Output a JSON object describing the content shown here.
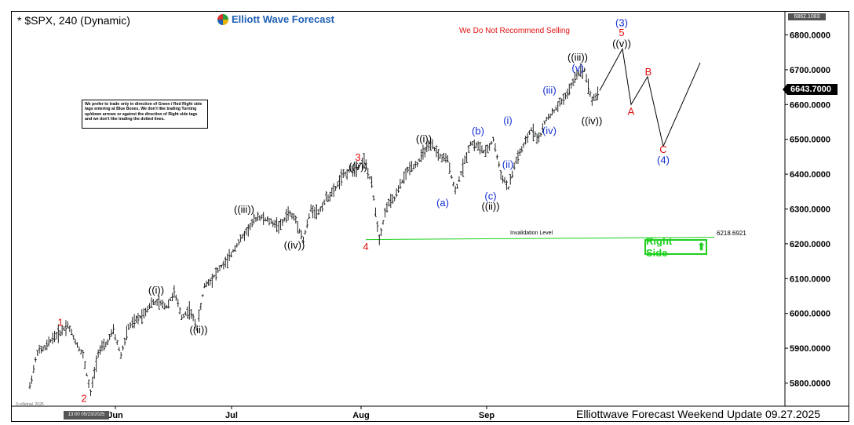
{
  "header": {
    "symbol_title": "* $SPX, 240 (Dynamic)",
    "brand": "Elliott Wave Forecast",
    "warning": "We Do Not Recommend Selling",
    "note": "We prefer to trade only in direction of Green / Red Right side tags entering at Blue Boxes. We don't like trading Turning up/down arrows or against the direction of Right side tags and we don't like trading the dotted lines."
  },
  "footer": {
    "update_text": "Elliottwave Forecast Weekend  Update 09.27.2025",
    "cursor_date": "13:00 05/23/2025",
    "esignal": "© eSignal, 2025"
  },
  "price_axis": {
    "top_label": "6862.1083",
    "current_price": "6643.7000"
  },
  "invalidation": {
    "label": "Invalidation Level",
    "value": "6218.6921"
  },
  "right_side_tag": "Right Side",
  "colors": {
    "red_label": "#e01010",
    "blue_label": "#1530d0",
    "black_label": "#000000",
    "invalidation_line": "#19d019",
    "right_side": "#1fd01f"
  },
  "chart_data": {
    "type": "line",
    "ylim": [
      5745,
      6875
    ],
    "yticks": [
      "5800.0000",
      "5900.0000",
      "6000.0000",
      "6100.0000",
      "6200.0000",
      "6300.0000",
      "6400.0000",
      "6500.0000",
      "6600.0000",
      "6700.0000",
      "6800.0000"
    ],
    "ytick_values": [
      5800,
      5900,
      6000,
      6100,
      6200,
      6300,
      6400,
      6500,
      6600,
      6700,
      6800
    ],
    "xticks": [
      "Jun",
      "Jul",
      "Aug",
      "Sep"
    ],
    "price_path": [
      5790,
      5890,
      5900,
      5930,
      5945,
      5968,
      5920,
      5880,
      5770,
      5890,
      5910,
      5950,
      5880,
      5960,
      5980,
      6000,
      6030,
      6030,
      6020,
      6060,
      5990,
      6010,
      5960,
      6080,
      6100,
      6130,
      6150,
      6190,
      6220,
      6250,
      6280,
      6270,
      6260,
      6250,
      6290,
      6270,
      6210,
      6300,
      6290,
      6330,
      6350,
      6390,
      6410,
      6420,
      6440,
      6370,
      6215,
      6310,
      6330,
      6380,
      6420,
      6430,
      6470,
      6480,
      6450,
      6440,
      6350,
      6420,
      6490,
      6480,
      6460,
      6500,
      6400,
      6360,
      6440,
      6480,
      6530,
      6500,
      6560,
      6580,
      6610,
      6640,
      6690,
      6700,
      6610,
      6640
    ],
    "projection_path": [
      6640,
      6760,
      6600,
      6680,
      6480,
      6720
    ],
    "wave_labels": [
      {
        "text": "1",
        "color": "red",
        "price": 5976,
        "col": 0
      },
      {
        "text": "2",
        "color": "red",
        "price": 5757,
        "col": 1
      },
      {
        "text": "((i))",
        "color": "black",
        "price": 6068,
        "col": 2
      },
      {
        "text": "((ii))",
        "color": "black",
        "price": 5954,
        "col": 3
      },
      {
        "text": "((iii))",
        "color": "black",
        "price": 6300,
        "col": 4
      },
      {
        "text": "((iv))",
        "color": "black",
        "price": 6197,
        "col": 5
      },
      {
        "text": "3",
        "color": "red",
        "price": 6450,
        "col": 6
      },
      {
        "text": "((v))",
        "color": "black",
        "price": 6423,
        "col": 6
      },
      {
        "text": "4",
        "color": "red",
        "price": 6193,
        "col": 7
      },
      {
        "text": "((i))",
        "color": "black",
        "price": 6503,
        "col": 8
      },
      {
        "text": "(a)",
        "color": "blue",
        "price": 6319,
        "col": 9
      },
      {
        "text": "(b)",
        "color": "blue",
        "price": 6525,
        "col": 10
      },
      {
        "text": "(c)",
        "color": "blue",
        "price": 6338,
        "col": 11
      },
      {
        "text": "((ii))",
        "color": "black",
        "price": 6309,
        "col": 11
      },
      {
        "text": "(i)",
        "color": "blue",
        "price": 6556,
        "col": 12
      },
      {
        "text": "(ii)",
        "color": "blue",
        "price": 6430,
        "col": 12
      },
      {
        "text": "(iii)",
        "color": "blue",
        "price": 6642,
        "col": 13
      },
      {
        "text": "(iv)",
        "color": "blue",
        "price": 6526,
        "col": 13
      },
      {
        "text": "((iii))",
        "color": "black",
        "price": 6737,
        "col": 14
      },
      {
        "text": "(v)",
        "color": "blue",
        "price": 6707,
        "col": 14
      },
      {
        "text": "((iv))",
        "color": "black",
        "price": 6555,
        "col": 15
      },
      {
        "text": "(3)",
        "color": "blue",
        "price": 6836,
        "col": 16
      },
      {
        "text": "5",
        "color": "red",
        "price": 6808,
        "col": 16
      },
      {
        "text": "((v))",
        "color": "black",
        "price": 6776,
        "col": 16
      },
      {
        "text": "A",
        "color": "red",
        "price": 6581,
        "col": 17
      },
      {
        "text": "B",
        "color": "red",
        "price": 6695,
        "col": 18
      },
      {
        "text": "C",
        "color": "red",
        "price": 6472,
        "col": 19
      },
      {
        "text": "(4)",
        "color": "blue",
        "price": 6442,
        "col": 19
      }
    ]
  }
}
